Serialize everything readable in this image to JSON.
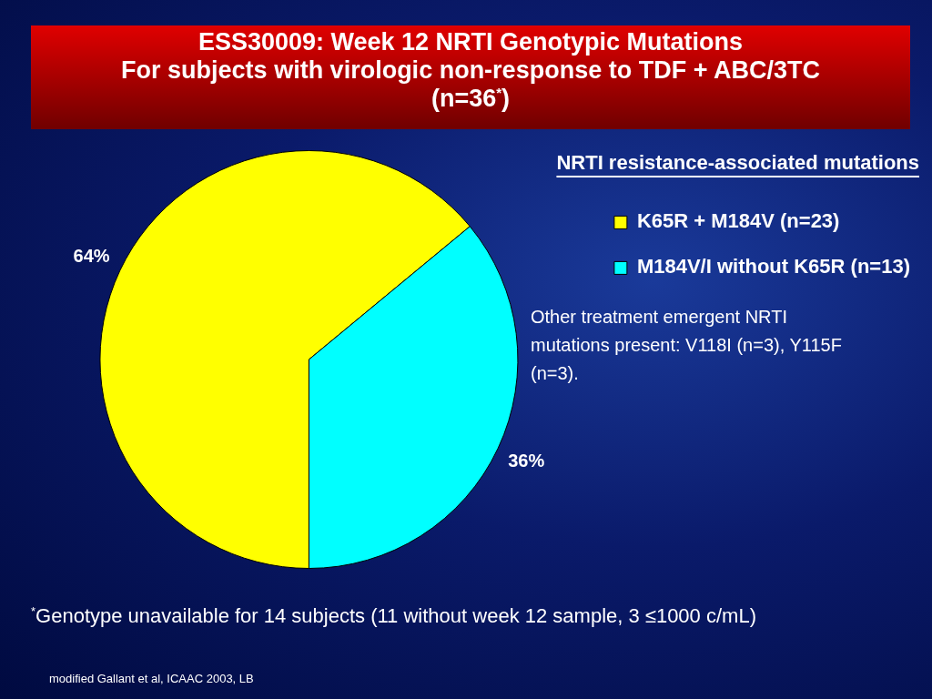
{
  "chart_data": {
    "type": "pie",
    "title": "ESS30009: Week 12 NRTI Genotypic Mutations\nFor subjects with virologic non-response to TDF + ABC/3TC (n=36$^{*}$)",
    "legend_title": "NRTI resistance-associated mutations",
    "categories": [
      "K65R + M184V (n=23)",
      "M184V/I without K65R (n=13)"
    ],
    "values": [
      64,
      36
    ],
    "colors": [
      "#ffff00",
      "#00ffff"
    ],
    "value_labels": [
      "64%",
      "36%"
    ],
    "legend": "right",
    "annotations": [
      "Other treatment emergent NRTI mutations present: V118I (n=3), Y115F (n=3).",
      "$^{*}$Genotype unavailable for 14 subjects (11 without week 12 sample, 3 ≤1000 c/mL)",
      "modified Gallant et al, ICAAC 2003, LB"
    ]
  }
}
